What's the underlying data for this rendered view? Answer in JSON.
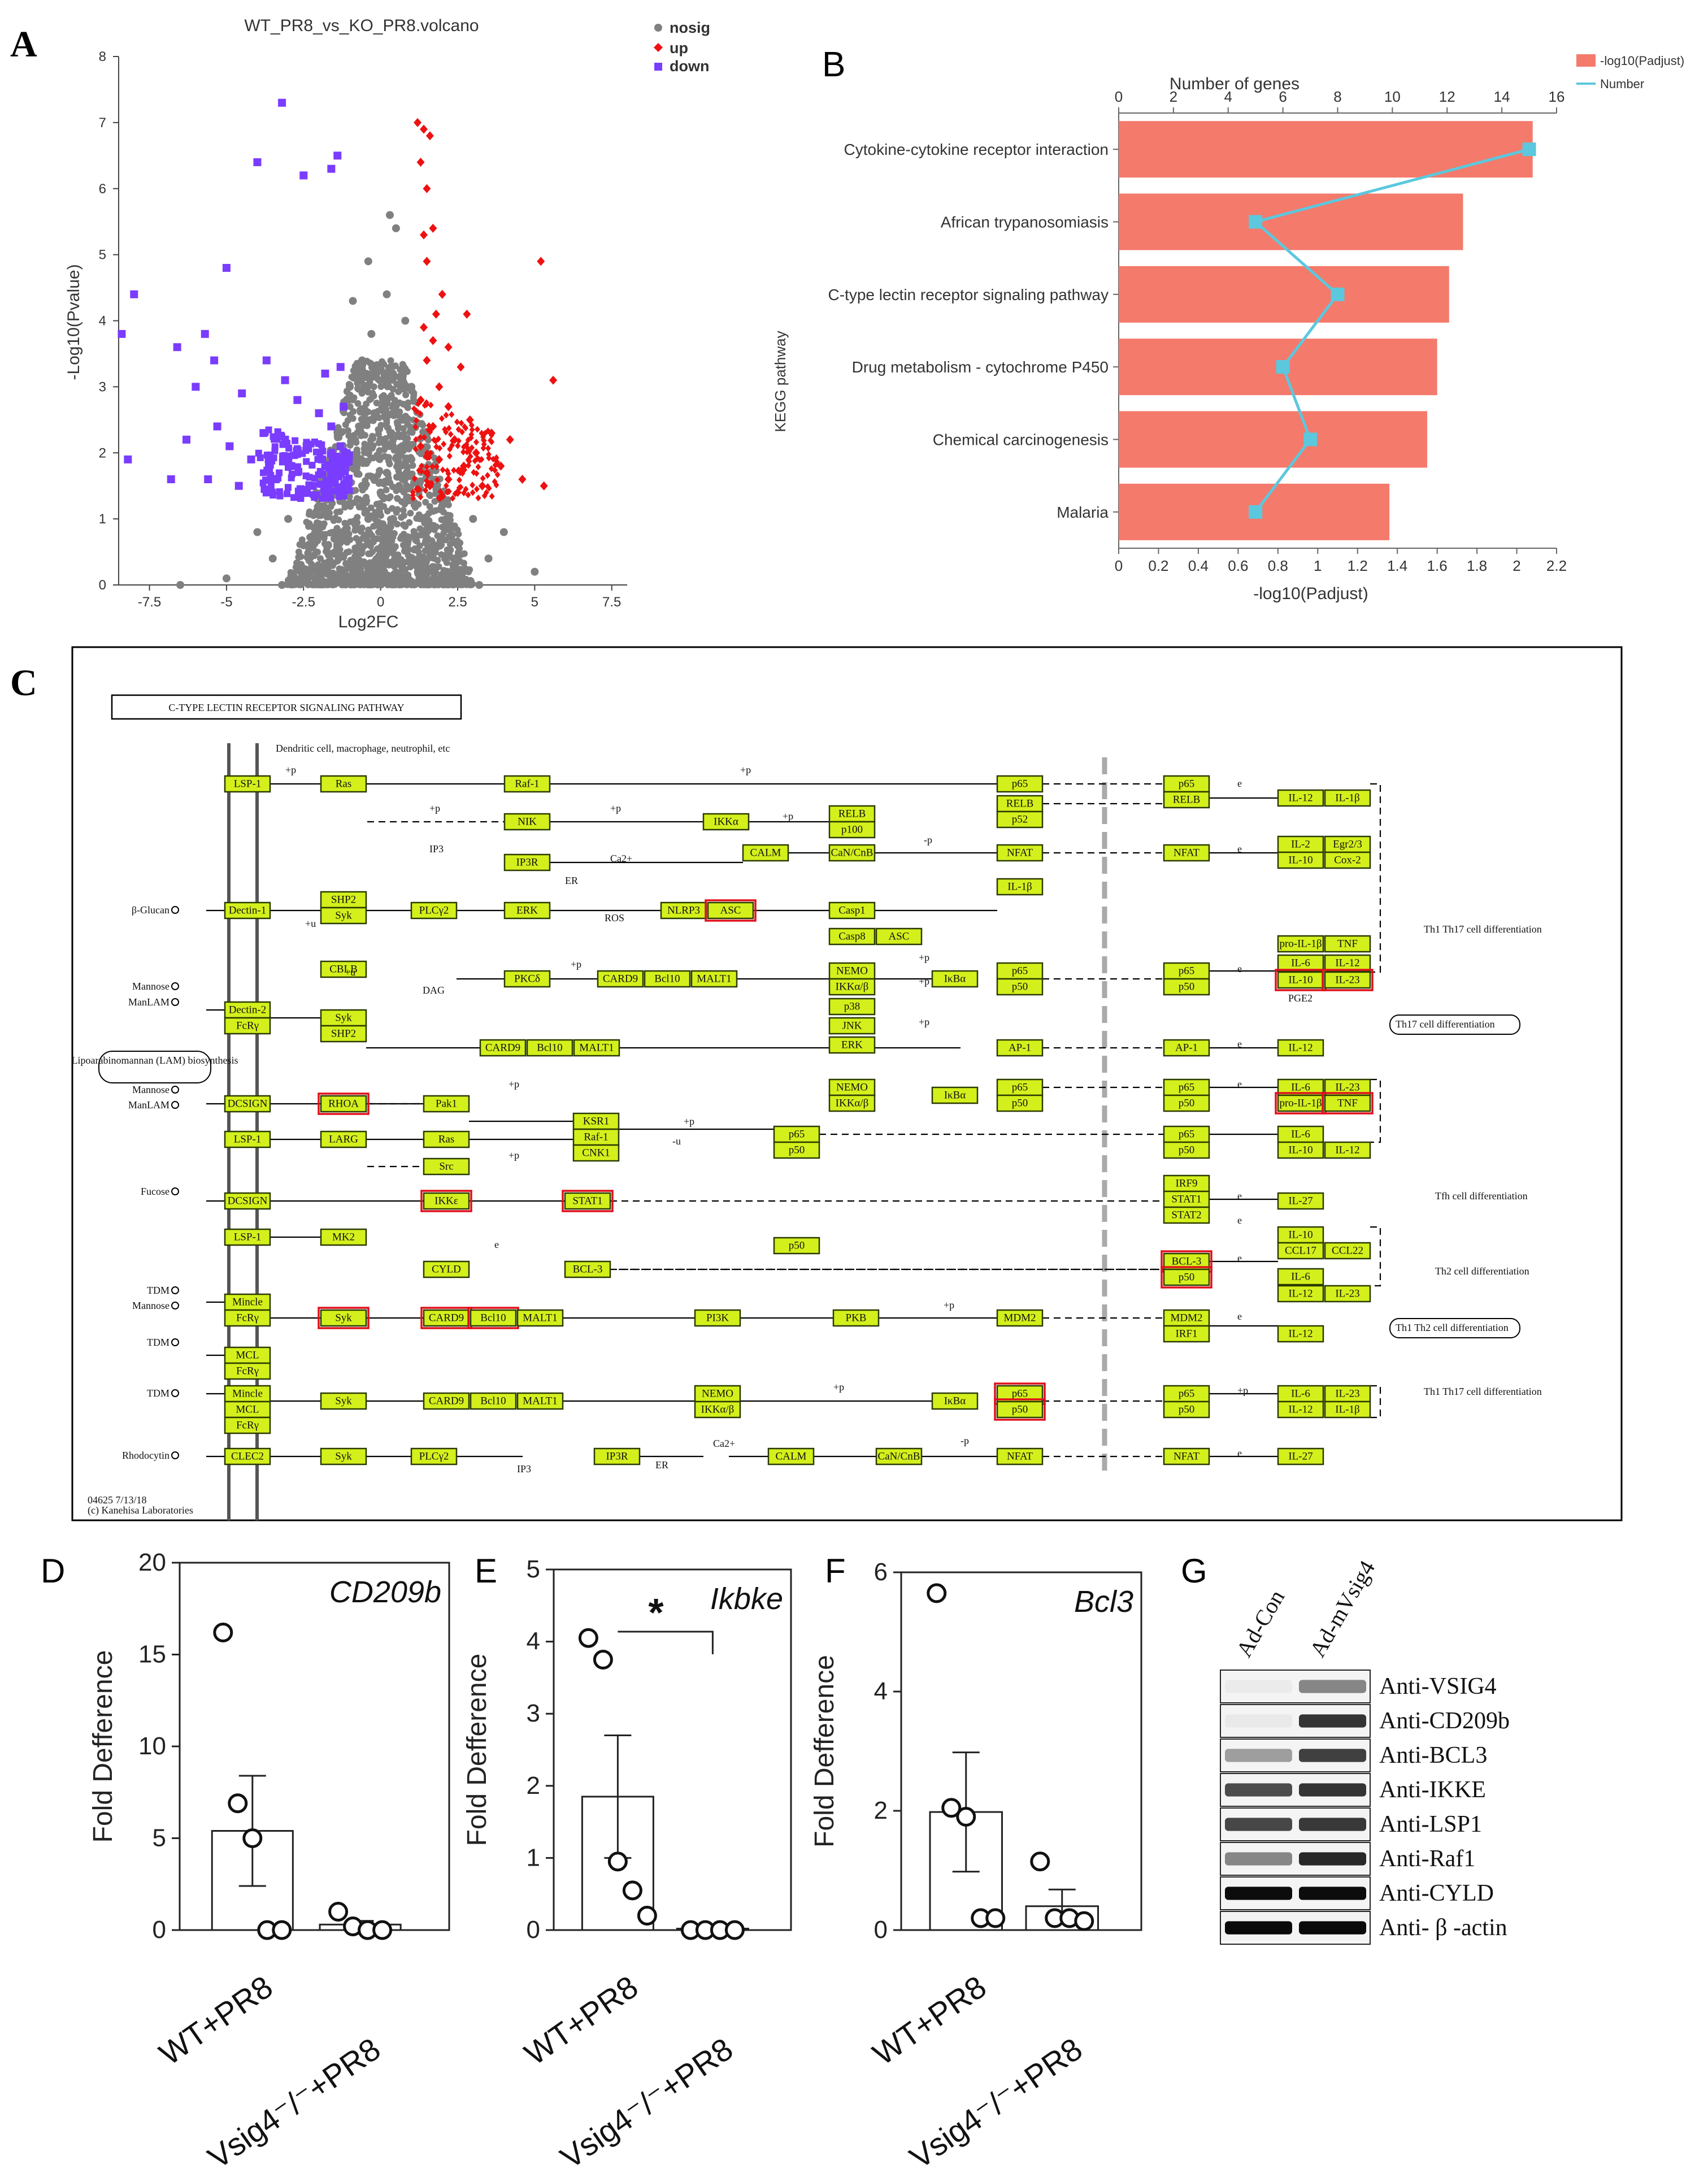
{
  "panels": {
    "A": {
      "label": "A",
      "chart_data": {
        "type": "scatter",
        "title": "WT_PR8_vs_KO_PR8.volcano",
        "xlabel": "Log2FC",
        "ylabel": "-Log10(Pvalue)",
        "xlim": [
          -8.5,
          8
        ],
        "ylim": [
          0,
          8
        ],
        "xticks": [
          "-7.5",
          "-5",
          "-2.5",
          "0",
          "2.5",
          "5",
          "7.5"
        ],
        "yticks": [
          "0",
          "1",
          "2",
          "3",
          "4",
          "5",
          "6",
          "7",
          "8"
        ],
        "legend": [
          {
            "name": "nosig",
            "color": "#808080"
          },
          {
            "name": "up",
            "color": "#ee1111"
          },
          {
            "name": "down",
            "color": "#7a3cff"
          }
        ],
        "series": [
          {
            "name": "down",
            "points": [
              [
                -3.2,
                7.3
              ],
              [
                -4.0,
                6.4
              ],
              [
                -2.5,
                6.2
              ],
              [
                -1.4,
                6.5
              ],
              [
                -1.6,
                6.3
              ],
              [
                -5.0,
                4.8
              ],
              [
                -8.0,
                4.4
              ],
              [
                -8.4,
                3.8
              ],
              [
                -5.7,
                3.8
              ],
              [
                -6.6,
                3.6
              ],
              [
                -3.7,
                3.4
              ],
              [
                -5.4,
                3.4
              ],
              [
                -3.1,
                3.1
              ],
              [
                -1.8,
                3.2
              ],
              [
                -1.3,
                3.3
              ],
              [
                -6.0,
                3.0
              ],
              [
                -4.5,
                2.9
              ],
              [
                -2.7,
                2.8
              ],
              [
                -2.0,
                2.6
              ],
              [
                -1.2,
                2.7
              ],
              [
                -5.3,
                2.4
              ],
              [
                -3.8,
                2.3
              ],
              [
                -1.6,
                2.4
              ],
              [
                -6.3,
                2.2
              ],
              [
                -4.9,
                2.1
              ],
              [
                -3.1,
                2.2
              ],
              [
                -2.4,
                2.1
              ],
              [
                -1.3,
                2.1
              ],
              [
                -4.2,
                1.9
              ],
              [
                -2.9,
                1.8
              ],
              [
                -1.9,
                1.9
              ],
              [
                -6.8,
                1.6
              ],
              [
                -5.6,
                1.6
              ],
              [
                -4.6,
                1.5
              ],
              [
                -3.4,
                1.6
              ],
              [
                -2.2,
                1.5
              ],
              [
                -1.5,
                1.6
              ],
              [
                -8.2,
                1.9
              ],
              [
                -3.7,
                1.4
              ],
              [
                -2.6,
                1.45
              ],
              [
                -1.8,
                1.4
              ],
              [
                -1.1,
                1.5
              ]
            ]
          },
          {
            "name": "up",
            "points": [
              [
                1.2,
                7.0
              ],
              [
                1.4,
                6.9
              ],
              [
                1.6,
                6.8
              ],
              [
                1.3,
                6.4
              ],
              [
                1.5,
                6.0
              ],
              [
                1.7,
                5.4
              ],
              [
                1.4,
                5.3
              ],
              [
                5.2,
                4.9
              ],
              [
                1.5,
                4.9
              ],
              [
                2.0,
                4.4
              ],
              [
                1.8,
                4.1
              ],
              [
                2.8,
                4.1
              ],
              [
                1.4,
                3.9
              ],
              [
                1.7,
                3.7
              ],
              [
                2.2,
                3.6
              ],
              [
                1.5,
                3.4
              ],
              [
                2.6,
                3.3
              ],
              [
                5.6,
                3.1
              ],
              [
                1.9,
                3.0
              ],
              [
                1.3,
                2.8
              ],
              [
                2.2,
                2.7
              ],
              [
                2.9,
                2.5
              ],
              [
                3.6,
                2.3
              ],
              [
                1.7,
                2.4
              ],
              [
                2.4,
                2.2
              ],
              [
                4.2,
                2.2
              ],
              [
                1.3,
                2.1
              ],
              [
                3.1,
                2.0
              ],
              [
                1.9,
                1.9
              ],
              [
                2.7,
                1.8
              ],
              [
                3.9,
                1.8
              ],
              [
                1.5,
                1.7
              ],
              [
                2.2,
                1.6
              ],
              [
                4.6,
                1.6
              ],
              [
                3.3,
                1.5
              ],
              [
                1.6,
                1.5
              ],
              [
                2.5,
                1.4
              ],
              [
                5.3,
                1.5
              ],
              [
                1.2,
                1.45
              ],
              [
                2.0,
                1.35
              ]
            ]
          },
          {
            "name": "nosig",
            "points": [
              [
                0.3,
                5.6
              ],
              [
                0.5,
                5.4
              ],
              [
                -0.4,
                4.9
              ],
              [
                0.2,
                4.4
              ],
              [
                -0.9,
                4.3
              ],
              [
                0.8,
                4.0
              ],
              [
                -0.3,
                3.8
              ],
              [
                -0.6,
                3.4
              ],
              [
                0.4,
                3.2
              ],
              [
                1.0,
                3.0
              ],
              [
                -1.0,
                3.0
              ],
              [
                0.2,
                2.8
              ],
              [
                -0.2,
                2.6
              ],
              [
                0.7,
                2.5
              ],
              [
                -0.7,
                2.4
              ],
              [
                0.0,
                2.2
              ],
              [
                0.4,
                2.1
              ],
              [
                -0.4,
                2.0
              ],
              [
                1.0,
                1.9
              ],
              [
                -1.0,
                1.8
              ],
              [
                0.2,
                1.7
              ],
              [
                -0.2,
                1.6
              ],
              [
                0.6,
                1.5
              ],
              [
                -0.6,
                1.5
              ],
              [
                0.0,
                1.4
              ],
              [
                2.0,
                1.2
              ],
              [
                -2.0,
                1.2
              ],
              [
                3.0,
                1.0
              ],
              [
                -3.0,
                1.0
              ],
              [
                0.4,
                1.0
              ],
              [
                -0.4,
                1.0
              ],
              [
                4.0,
                0.8
              ],
              [
                -4.0,
                0.8
              ],
              [
                1.5,
                0.7
              ],
              [
                -1.5,
                0.7
              ],
              [
                2.5,
                0.6
              ],
              [
                -2.5,
                0.6
              ],
              [
                0.0,
                0.5
              ],
              [
                3.5,
                0.4
              ],
              [
                -3.5,
                0.4
              ],
              [
                1.0,
                0.3
              ],
              [
                -1.0,
                0.3
              ],
              [
                5.0,
                0.2
              ],
              [
                -5.0,
                0.1
              ],
              [
                -6.5,
                0.0
              ],
              [
                -3.2,
                0.0
              ],
              [
                3.2,
                0.0
              ]
            ]
          }
        ]
      }
    },
    "B": {
      "label": "B",
      "chart_data": {
        "type": "bar",
        "orientation": "horizontal",
        "categories": [
          "Cytokine-cytokine receptor interaction",
          "African trypanosomiasis",
          "C-type lectin receptor signaling pathway",
          "Drug metabolism - cytochrome P450",
          "Chemical carcinogenesis",
          "Malaria"
        ],
        "ylabel": "KEGG pathway",
        "xlabel_bottom": "-log10(Padjust)",
        "xlabel_top": "Number of genes",
        "xlim_bottom": [
          0,
          2.2
        ],
        "xlim_top": [
          0,
          16
        ],
        "xticks_bottom": [
          "0",
          "0.2",
          "0.4",
          "0.6",
          "0.8",
          "1",
          "1.2",
          "1.4",
          "1.6",
          "1.8",
          "2",
          "2.2"
        ],
        "xticks_top": [
          "0",
          "2",
          "4",
          "6",
          "8",
          "10",
          "12",
          "14",
          "16"
        ],
        "series": [
          {
            "name": "-log10(Padjust)",
            "color": "#f47a6b",
            "values": [
              2.08,
              1.73,
              1.66,
              1.6,
              1.55,
              1.36
            ]
          },
          {
            "name": "Number",
            "color": "#5bc8de",
            "values": [
              15,
              5,
              8,
              6,
              7,
              5
            ]
          }
        ]
      }
    },
    "C": {
      "label": "C",
      "title": "C-TYPE LECTIN RECEPTOR SIGNALING PATHWAY",
      "subtitle": "Dendritic cell, macrophage, neutrophil, etc",
      "footer1": "04625 7/13/18",
      "footer2": "(c) Kanehisa Laboratories",
      "ligands": [
        "β-Glucan",
        "Mannose",
        "ManLAM",
        "Mannose",
        "ManLAM",
        "Fucose",
        "TDM",
        "Mannose",
        "TDM",
        "TDM",
        "Rhodocytin"
      ],
      "lam_label": "Lipoarabinomannan (LAM) biosynthesis",
      "outcomes": [
        "Th1 Th17 cell differentiation",
        "Th17 cell differentiation",
        "Tfh cell differentiation",
        "Th2 cell differentiation",
        "Th1 Th2  cell differentiation",
        "Th1 Th17 cell differentiation"
      ],
      "small_labels": [
        "IP3",
        "ER",
        "Ca2+",
        "ROS",
        "DAG",
        "PGE2",
        "IP3",
        "ER",
        "Ca2+"
      ],
      "node_labels": [
        "LSP-1",
        "Ras",
        "Raf-1",
        "p65",
        "p65",
        "RELB",
        "IL-12",
        "IL-1β",
        "NIK",
        "IKKα",
        "RELB",
        "p100",
        "RELB",
        "p52",
        "IP3R",
        "CALM",
        "CaN/CnB",
        "NFAT",
        "NFAT",
        "IL-2",
        "Egr2/3",
        "IL-10",
        "Cox-2",
        "Dectin-1",
        "SHP2",
        "Syk",
        "PLCγ2",
        "ERK",
        "NLRP3",
        "ASC",
        "Casp1",
        "IL-1β",
        "Casp8",
        "ASC",
        "pro-IL-1β",
        "TNF",
        "CBLB",
        "PKCδ",
        "CARD9",
        "Bcl10",
        "MALT1",
        "NEMO",
        "IKKα/β",
        "IκBα",
        "p65",
        "p50",
        "p65",
        "p50",
        "IL-6",
        "IL-12",
        "IL-10",
        "IL-23",
        "Dectin-2",
        "FcRγ",
        "Syk",
        "SHP2",
        "CARD9",
        "Bcl10",
        "MALT1",
        "p38",
        "JNK",
        "ERK",
        "AP-1",
        "AP-1",
        "IL-12",
        "DCSIGN",
        "RHOA",
        "Pak1",
        "NEMO",
        "IKKα/β",
        "IκBα",
        "p65",
        "p50",
        "p65",
        "p50",
        "IL-6",
        "IL-23",
        "pro-IL-1β",
        "TNF",
        "LSP-1",
        "LARG",
        "Ras",
        "Src",
        "KSR1",
        "Raf-1",
        "CNK1",
        "p65",
        "p50",
        "p65",
        "p50",
        "IL-6",
        "IL-10",
        "IL-12",
        "DCSIGN",
        "IKKε",
        "STAT1",
        "IRF9",
        "STAT1",
        "STAT2",
        "IL-27",
        "LSP-1",
        "MK2",
        "CYLD",
        "BCL-3",
        "p50",
        "BCL-3",
        "p50",
        "IL-10",
        "CCL17",
        "CCL22",
        "IL-6",
        "IL-12",
        "IL-23",
        "Mincle",
        "FcRγ",
        "Syk",
        "CARD9",
        "Bcl10",
        "MALT1",
        "PI3K",
        "PKB",
        "MDM2",
        "MDM2",
        "IRF1",
        "IL-12",
        "MCL",
        "FcRγ",
        "Mincle",
        "MCL",
        "FcRγ",
        "Syk",
        "CARD9",
        "Bcl10",
        "MALT1",
        "NEMO",
        "IKKα/β",
        "IκBα",
        "p65",
        "p50",
        "p65",
        "p50",
        "IL-6",
        "IL-23",
        "IL-12",
        "IL-1β",
        "CLEC2",
        "Syk",
        "PLCγ2",
        "IP3R",
        "CALM",
        "CaN/CnB",
        "NFAT",
        "NFAT",
        "IL-27"
      ],
      "edge_labels": [
        "+p",
        "+p",
        "+p",
        "+p",
        "+p",
        "-p",
        "e",
        "e",
        "e",
        "+u",
        "+u",
        "+p",
        "+p",
        "+p",
        "+p",
        "e",
        "e",
        "+p",
        "+p",
        "+p",
        "-u",
        "e",
        "e",
        "+p",
        "e",
        "+p",
        "+p",
        "-p",
        "e",
        "e",
        "e"
      ]
    },
    "D": {
      "label": "D",
      "gene": "CD209b",
      "ylabel": "Fold Defference",
      "yticks": [
        "0",
        "5",
        "10",
        "15",
        "20"
      ],
      "groups": [
        "WT+PR8",
        "Vsig4⁻/⁻+PR8"
      ],
      "chart_data": {
        "type": "bar",
        "categories": [
          "WT+PR8",
          "Vsig4-/-+PR8"
        ],
        "ylim": [
          0,
          20
        ],
        "means": [
          5.4,
          0.3
        ],
        "sem": [
          3.0,
          0.2
        ],
        "points": [
          [
            16.2,
            6.9,
            5.0,
            0.0,
            0.0
          ],
          [
            1.0,
            0.2,
            0.0,
            0.0
          ]
        ]
      }
    },
    "E": {
      "label": "E",
      "gene": "Ikbke",
      "significance": "*",
      "ylabel": "Fold Defference",
      "yticks": [
        "0",
        "1",
        "2",
        "3",
        "4",
        "5"
      ],
      "groups": [
        "WT+PR8",
        "Vsig4⁻/⁻+PR8"
      ],
      "chart_data": {
        "type": "bar",
        "categories": [
          "WT+PR8",
          "Vsig4-/-+PR8"
        ],
        "ylim": [
          0,
          5
        ],
        "means": [
          1.85,
          0.02
        ],
        "sem": [
          0.85,
          0.02
        ],
        "points": [
          [
            4.05,
            3.75,
            0.95,
            0.55,
            0.2
          ],
          [
            0.0,
            0.0,
            0.0,
            0.0
          ]
        ]
      }
    },
    "F": {
      "label": "F",
      "gene": "Bcl3",
      "ylabel": "Fold Defference",
      "yticks": [
        "0",
        "2",
        "4",
        "6"
      ],
      "groups": [
        "WT+PR8",
        "Vsig4⁻/⁻+PR8"
      ],
      "chart_data": {
        "type": "bar",
        "categories": [
          "WT+PR8",
          "Vsig4-/-+PR8"
        ],
        "ylim": [
          0,
          6
        ],
        "means": [
          1.98,
          0.4
        ],
        "sem": [
          1.0,
          0.28
        ],
        "points": [
          [
            5.65,
            2.05,
            1.9,
            0.2,
            0.2
          ],
          [
            1.15,
            0.2,
            0.2,
            0.15
          ]
        ]
      }
    },
    "G": {
      "label": "G",
      "lanes": [
        "Ad-Con",
        "Ad-mVsig4"
      ],
      "rows": [
        {
          "label": "Anti-VSIG4",
          "intensity": [
            0.02,
            0.45
          ]
        },
        {
          "label": "Anti-CD209b",
          "intensity": [
            0.03,
            0.8
          ]
        },
        {
          "label": "Anti-BCL3",
          "intensity": [
            0.35,
            0.75
          ]
        },
        {
          "label": "Anti-IKKE",
          "intensity": [
            0.7,
            0.8
          ]
        },
        {
          "label": "Anti-LSP1",
          "intensity": [
            0.72,
            0.78
          ]
        },
        {
          "label": "Anti-Raf1",
          "intensity": [
            0.45,
            0.85
          ]
        },
        {
          "label": "Anti-CYLD",
          "intensity": [
            0.97,
            0.97
          ]
        },
        {
          "label": "Anti- β -actin",
          "intensity": [
            0.98,
            0.98
          ]
        }
      ]
    }
  }
}
